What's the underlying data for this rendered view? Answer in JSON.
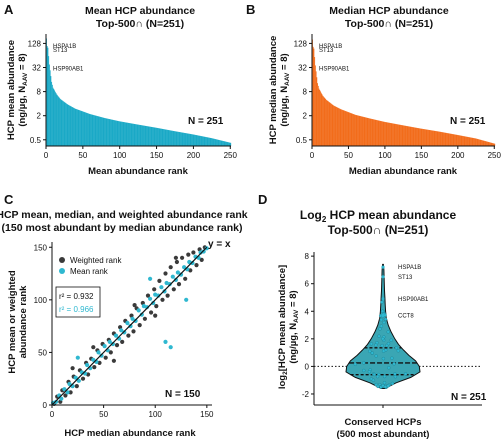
{
  "panels": {
    "A": {
      "letter": "A",
      "title_line1": "Mean HCP abundance",
      "title_line2": "Top-500∩ (N=251)",
      "ylabel_line1": "HCP mean abundance",
      "ylabel_line2": "(ng/µg, N",
      "ylabel_sub": "AAV",
      "ylabel_tail": " = 8)",
      "xlabel": "Mean abundance rank",
      "n_label": "N = 251",
      "color": "#1aa9c6",
      "annotations": [
        "HSPA1B",
        "ST13",
        "HSP90AB1"
      ]
    },
    "B": {
      "letter": "B",
      "title_line1": "Median HCP abundance",
      "title_line2": "Top-500∩ (N=251)",
      "ylabel_line1": "HCP median abundance",
      "ylabel_line2": "(ng/µg, N",
      "ylabel_sub": "AAV",
      "ylabel_tail": " = 8)",
      "xlabel": "Median abundance rank",
      "n_label": "N = 251",
      "color": "#f26c1b",
      "annotations": [
        "HSPA1B",
        "ST13",
        "HSP90AB1"
      ]
    },
    "C": {
      "letter": "C",
      "title_line1": "HCP mean, median, and weighted abundance rank",
      "title_line2": "(150 most abundant by median abundance rank)",
      "ylabel_line1": "HCP mean or weighted",
      "ylabel_line2": "abundance rank",
      "xlabel": "HCP median abundance rank",
      "n_label": "N = 150",
      "yx_label": "y = x",
      "legend": [
        "Weighted rank",
        "Mean rank"
      ],
      "r2_weighted": "r² = 0.932",
      "r2_mean": "r² = 0.966",
      "weighted_color": "#3a3a3a",
      "mean_color": "#2fb8d0"
    },
    "D": {
      "letter": "D",
      "title_prefix": "Log",
      "title_sub": "2",
      "title_rest": " HCP mean abundance",
      "title_line2": "Top-500∩ (N=251)",
      "ylabel_pre": "log",
      "ylabel_sub": "2",
      "ylabel_line1": "[HCP mean abundance]",
      "ylabel_line2": "(ng/µg, N",
      "ylabel_sub2": "AAV",
      "ylabel_tail": " = 8)",
      "xlabel_line1": "Conserved HCPs",
      "xlabel_line2": "(500 most abundant)",
      "n_label": "N = 251",
      "violin_color": "#3aa6b4",
      "annotations": [
        "HSPA1B",
        "ST13",
        "HSP90AB1",
        "CCT8"
      ]
    }
  },
  "chart_data": [
    {
      "panel": "A",
      "type": "bar",
      "title": "Mean HCP abundance Top-500∩ (N=251)",
      "xlabel": "Mean abundance rank",
      "ylabel": "HCP mean abundance (ng/µg, N_AAV = 8)",
      "y_scale": "log2",
      "x_ticks": [
        0,
        50,
        100,
        150,
        200,
        250
      ],
      "y_ticks": [
        "0.5",
        "2",
        "8",
        "32",
        "128"
      ],
      "xlim": [
        0,
        251
      ],
      "ylim": [
        0.35,
        220
      ],
      "n": 251,
      "profile": {
        "rank": [
          1,
          2,
          3,
          5,
          8,
          10,
          15,
          20,
          30,
          40,
          60,
          80,
          100,
          125,
          150,
          175,
          200,
          225,
          251
        ],
        "value": [
          170,
          110,
          100,
          38,
          14,
          10,
          6.8,
          5.2,
          3.8,
          3.0,
          2.2,
          1.75,
          1.45,
          1.2,
          1.0,
          0.82,
          0.68,
          0.55,
          0.42
        ]
      },
      "annotations": [
        {
          "label": "HSPA1B",
          "rank": 1,
          "value": 110
        },
        {
          "label": "ST13",
          "rank": 2,
          "value": 88
        },
        {
          "label": "HSP90AB1",
          "rank": 3,
          "value": 30
        }
      ]
    },
    {
      "panel": "B",
      "type": "bar",
      "title": "Median HCP abundance Top-500∩ (N=251)",
      "xlabel": "Median abundance rank",
      "ylabel": "HCP median abundance (ng/µg, N_AAV = 8)",
      "y_scale": "log2",
      "x_ticks": [
        0,
        50,
        100,
        150,
        200,
        250
      ],
      "y_ticks": [
        "0.5",
        "2",
        "8",
        "32",
        "128"
      ],
      "xlim": [
        0,
        251
      ],
      "ylim": [
        0.35,
        220
      ],
      "n": 251,
      "profile": {
        "rank": [
          1,
          2,
          3,
          5,
          8,
          10,
          15,
          20,
          30,
          40,
          60,
          80,
          100,
          125,
          150,
          175,
          200,
          225,
          251
        ],
        "value": [
          160,
          105,
          95,
          36,
          13,
          9.5,
          6.4,
          5.0,
          3.6,
          2.9,
          2.1,
          1.7,
          1.4,
          1.15,
          0.95,
          0.8,
          0.66,
          0.54,
          0.4
        ]
      },
      "annotations": [
        {
          "label": "HSPA1B",
          "rank": 1,
          "value": 110
        },
        {
          "label": "ST13",
          "rank": 2,
          "value": 88
        },
        {
          "label": "HSP90AB1",
          "rank": 3,
          "value": 30
        }
      ]
    },
    {
      "panel": "C",
      "type": "scatter",
      "title": "HCP mean, median, and weighted abundance rank (150 most abundant by median abundance rank)",
      "xlabel": "HCP median abundance rank",
      "ylabel": "HCP mean or weighted abundance rank",
      "xlim": [
        0,
        155
      ],
      "ylim": [
        0,
        155
      ],
      "x_ticks": [
        0,
        50,
        100,
        150
      ],
      "y_ticks": [
        0,
        50,
        100,
        150
      ],
      "n": 150,
      "reference_line": "y = x",
      "series": [
        {
          "name": "Weighted rank",
          "r2": 0.932,
          "points": [
            [
              2,
              1
            ],
            [
              5,
              8
            ],
            [
              8,
              3
            ],
            [
              10,
              14
            ],
            [
              13,
              9
            ],
            [
              16,
              22
            ],
            [
              18,
              12
            ],
            [
              21,
              27
            ],
            [
              24,
              18
            ],
            [
              27,
              33
            ],
            [
              30,
              25
            ],
            [
              33,
              40
            ],
            [
              35,
              29
            ],
            [
              38,
              44
            ],
            [
              41,
              36
            ],
            [
              44,
              52
            ],
            [
              46,
              40
            ],
            [
              49,
              58
            ],
            [
              52,
              45
            ],
            [
              55,
              62
            ],
            [
              57,
              50
            ],
            [
              60,
              68
            ],
            [
              63,
              57
            ],
            [
              66,
              74
            ],
            [
              68,
              60
            ],
            [
              71,
              80
            ],
            [
              74,
              66
            ],
            [
              77,
              85
            ],
            [
              79,
              70
            ],
            [
              82,
              92
            ],
            [
              85,
              76
            ],
            [
              88,
              97
            ],
            [
              90,
              82
            ],
            [
              93,
              104
            ],
            [
              96,
              88
            ],
            [
              99,
              110
            ],
            [
              101,
              94
            ],
            [
              104,
              118
            ],
            [
              107,
              100
            ],
            [
              110,
              125
            ],
            [
              112,
              104
            ],
            [
              115,
              131
            ],
            [
              118,
              110
            ],
            [
              121,
              136
            ],
            [
              123,
              115
            ],
            [
              126,
              140
            ],
            [
              129,
              120
            ],
            [
              132,
              143
            ],
            [
              134,
              128
            ],
            [
              137,
              145
            ],
            [
              140,
              133
            ],
            [
              143,
              148
            ],
            [
              145,
              138
            ],
            [
              148,
              150
            ],
            [
              20,
              35
            ],
            [
              40,
              55
            ],
            [
              60,
              42
            ],
            [
              80,
              95
            ],
            [
              100,
              85
            ],
            [
              120,
              140
            ]
          ]
        },
        {
          "name": "Mean rank",
          "r2": 0.966,
          "points": [
            [
              1,
              2
            ],
            [
              4,
              3
            ],
            [
              7,
              9
            ],
            [
              9,
              6
            ],
            [
              12,
              15
            ],
            [
              15,
              12
            ],
            [
              17,
              20
            ],
            [
              20,
              18
            ],
            [
              23,
              26
            ],
            [
              26,
              23
            ],
            [
              29,
              31
            ],
            [
              32,
              30
            ],
            [
              34,
              38
            ],
            [
              37,
              35
            ],
            [
              40,
              43
            ],
            [
              43,
              41
            ],
            [
              45,
              50
            ],
            [
              48,
              47
            ],
            [
              51,
              56
            ],
            [
              54,
              52
            ],
            [
              56,
              60
            ],
            [
              59,
              58
            ],
            [
              62,
              66
            ],
            [
              65,
              63
            ],
            [
              67,
              71
            ],
            [
              70,
              69
            ],
            [
              73,
              78
            ],
            [
              76,
              75
            ],
            [
              78,
              82
            ],
            [
              81,
              80
            ],
            [
              84,
              90
            ],
            [
              87,
              86
            ],
            [
              89,
              94
            ],
            [
              92,
              93
            ],
            [
              95,
              101
            ],
            [
              98,
              97
            ],
            [
              100,
              105
            ],
            [
              103,
              104
            ],
            [
              106,
              112
            ],
            [
              109,
              108
            ],
            [
              111,
              116
            ],
            [
              114,
              115
            ],
            [
              117,
              122
            ],
            [
              120,
              119
            ],
            [
              122,
              126
            ],
            [
              125,
              124
            ],
            [
              128,
              131
            ],
            [
              131,
              129
            ],
            [
              133,
              136
            ],
            [
              136,
              135
            ],
            [
              139,
              141
            ],
            [
              142,
              140
            ],
            [
              144,
              145
            ],
            [
              147,
              146
            ],
            [
              150,
              149
            ],
            [
              110,
              60
            ],
            [
              115,
              55
            ],
            [
              95,
              120
            ],
            [
              130,
              100
            ],
            [
              25,
              45
            ]
          ]
        }
      ]
    },
    {
      "panel": "D",
      "type": "violin",
      "title": "Log2 HCP mean abundance Top-500∩ (N=251)",
      "xlabel": "Conserved HCPs (500 most abundant)",
      "ylabel": "log2[HCP mean abundance] (ng/µg, N_AAV = 8)",
      "ylim": [
        -2.8,
        8.3
      ],
      "y_ticks": [
        -2,
        0,
        2,
        4,
        6,
        8
      ],
      "n": 251,
      "quartiles": {
        "q1": -0.6,
        "median": 0.25,
        "q3": 1.35
      },
      "density_y": [
        -1.6,
        -1.2,
        -0.8,
        -0.4,
        0.0,
        0.4,
        0.8,
        1.2,
        1.6,
        2.0,
        2.5,
        3.0,
        3.5,
        4.0,
        4.5,
        5.0,
        5.5,
        6.0,
        6.5,
        7.0,
        7.4
      ],
      "density_w": [
        0.05,
        0.35,
        0.75,
        1.0,
        0.98,
        0.88,
        0.7,
        0.55,
        0.42,
        0.32,
        0.22,
        0.14,
        0.09,
        0.07,
        0.06,
        0.05,
        0.04,
        0.035,
        0.03,
        0.025,
        0.01
      ],
      "annotations": [
        {
          "label": "HSPA1B",
          "value": 7.2
        },
        {
          "label": "ST13",
          "value": 6.5
        },
        {
          "label": "HSP90AB1",
          "value": 4.9
        },
        {
          "label": "CCT8",
          "value": 3.7
        }
      ]
    }
  ]
}
